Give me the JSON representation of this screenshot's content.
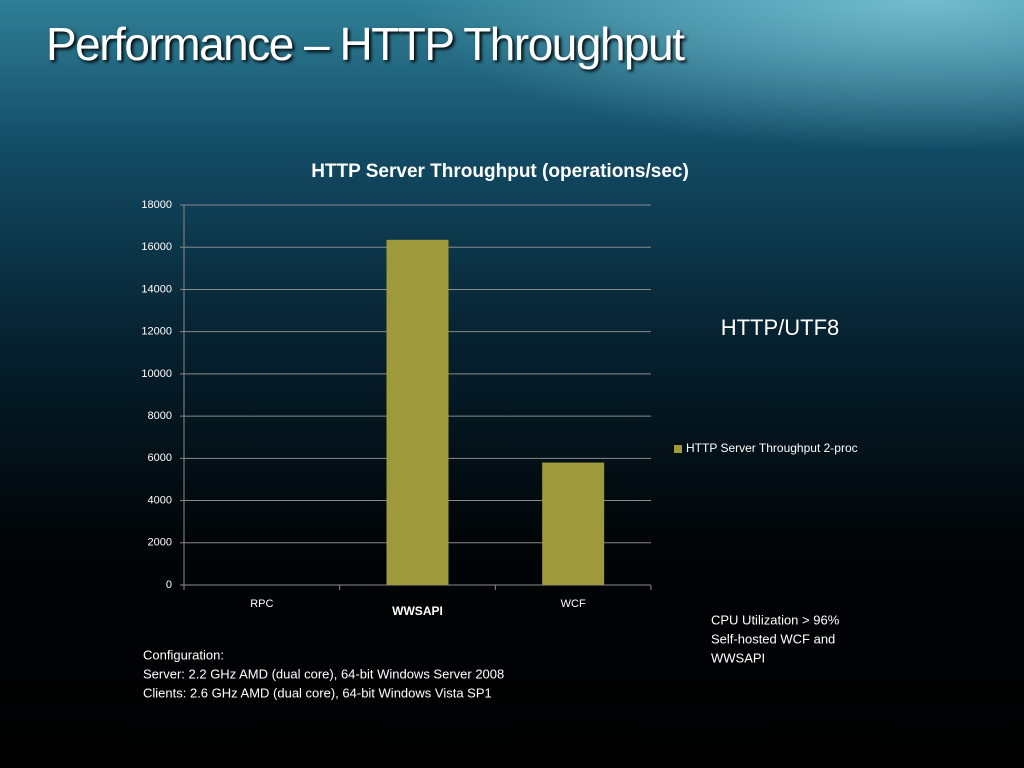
{
  "slide": {
    "title": "Performance – HTTP Throughput",
    "config": [
      "Configuration:",
      "Server: 2.2 GHz AMD (dual core), 64-bit Windows Server 2008",
      "Clients: 2.6 GHz AMD (dual core), 64-bit Windows Vista SP1"
    ],
    "notes": [
      "CPU Utilization > 96%",
      "Self-hosted WCF and",
      "WWSAPI"
    ],
    "label": "HTTP/UTF8"
  },
  "chart_data": {
    "type": "bar",
    "title": "HTTP Server Throughput (operations/sec)",
    "categories": [
      "RPC",
      "WWSAPI",
      "WCF"
    ],
    "series": [
      {
        "name": "HTTP Server Throughput 2-proc",
        "color": "#9e9a3c",
        "values": [
          0,
          16350,
          5800
        ]
      }
    ],
    "ylim": [
      0,
      18000
    ],
    "yticks": [
      0,
      2000,
      4000,
      6000,
      8000,
      10000,
      12000,
      14000,
      16000,
      18000
    ],
    "grid": true,
    "legend": "right"
  }
}
